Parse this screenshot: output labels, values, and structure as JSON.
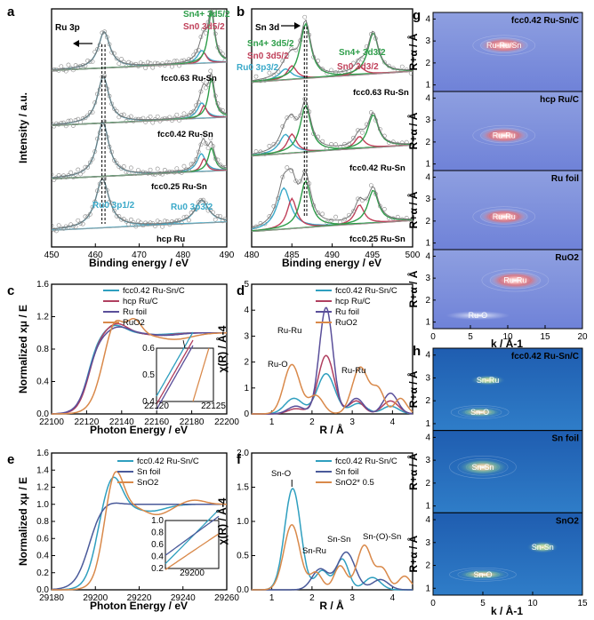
{
  "colors": {
    "fcc": "#2f9fbf",
    "hcp": "#b04060",
    "rufoil": "#5a4f9a",
    "ruo2": "#d9894a",
    "snfoil": "#4a5a9a",
    "sno2": "#d9894a",
    "green": "#2e9e4a",
    "red": "#c0405a",
    "blue": "#3aa9c9",
    "raw": "#888888"
  },
  "panels": {
    "a": "a",
    "b": "b",
    "c": "c",
    "d": "d",
    "e": "e",
    "f": "f",
    "g": "g",
    "h": "h"
  },
  "chart_data": [
    {
      "id": "a",
      "type": "line",
      "title": "Ru 3p",
      "xlabel": "Binding energy / eV",
      "ylabel": "Intensity / a.u.",
      "xlim": [
        450,
        490
      ],
      "xticks": [
        450,
        460,
        470,
        480,
        490
      ],
      "samples": [
        "fcc0.63 Ru-Sn",
        "fcc0.42 Ru-Sn",
        "fcc0.25 Ru-Sn",
        "hcp Ru"
      ],
      "peaks": {
        "Ru0 3p1/2": 462.0,
        "Ru0 3p3/2": 484.3,
        "Sn0 3d5/2": 484.8,
        "Sn4+ 3d5/2": 486.5
      },
      "labels": {
        "sn4": "Sn4+ 3d5/2",
        "sn0": "Sn0 3d5/2",
        "ru1": "Ru0 3p1/2",
        "ru3": "Ru0 3p3/2"
      }
    },
    {
      "id": "b",
      "type": "line",
      "title": "Sn 3d",
      "xlabel": "Binding energy / eV",
      "ylabel": "",
      "xlim": [
        480,
        500
      ],
      "xticks": [
        480,
        485,
        490,
        495,
        500
      ],
      "samples": [
        "fcc0.63 Ru-Sn",
        "fcc0.42 Ru-Sn",
        "fcc0.25 Ru-Sn"
      ],
      "peaks": {
        "Ru0 3p3/2": 484.2,
        "Sn0 3d5/2": 485.0,
        "Sn4+ 3d5/2": 486.7,
        "Sn0 3d3/2": 493.4,
        "Sn4+ 3d3/2": 495.1
      },
      "labels": {
        "sn4_52": "Sn4+ 3d5/2",
        "sn0_52": "Sn0 3d5/2",
        "ru": "Ru0 3p3/2",
        "sn4_32": "Sn4+ 3d3/2",
        "sn0_32": "Sn0 3d3/2"
      }
    },
    {
      "id": "c",
      "type": "line",
      "xlabel": "Photon Energy / eV",
      "ylabel": "Normalized xμ / E",
      "xlim": [
        22100,
        22200
      ],
      "ylim": [
        0,
        1.6
      ],
      "xticks": [
        22100,
        22120,
        22140,
        22160,
        22180,
        22200
      ],
      "yticks": [
        0,
        0.4,
        0.8,
        1.2,
        1.6
      ],
      "series": [
        {
          "name": "fcc0.42 Ru-Sn/C",
          "color": "#2f9fbf"
        },
        {
          "name": "hcp Ru/C",
          "color": "#b04060"
        },
        {
          "name": "Ru foil",
          "color": "#5a4f9a"
        },
        {
          "name": "RuO2",
          "color": "#d9894a"
        }
      ],
      "inset": {
        "xlim": [
          22120,
          22125
        ],
        "ylim": [
          0.4,
          0.6
        ],
        "xticks": [
          22120,
          22125
        ],
        "yticks": [
          0.4,
          0.5,
          0.6
        ]
      }
    },
    {
      "id": "d",
      "type": "line",
      "xlabel": "R / Å",
      "ylabel": "χ(R) / Å-4",
      "xlim": [
        0.5,
        4.5
      ],
      "ylim": [
        0,
        5
      ],
      "xticks": [
        1,
        2,
        3,
        4
      ],
      "yticks": [
        0,
        1,
        2,
        3,
        4,
        5
      ],
      "series": [
        {
          "name": "fcc0.42 Ru-Sn/C",
          "color": "#2f9fbf",
          "peak": 1.55
        },
        {
          "name": "hcp Ru/C",
          "color": "#b04060",
          "peak": 2.25
        },
        {
          "name": "Ru foil",
          "color": "#5a4f9a",
          "peak": 4.1
        },
        {
          "name": "RuO2",
          "color": "#d9894a",
          "peak": 1.9
        }
      ],
      "annotations": [
        "Ru-Ru",
        "Ru-O",
        "Ru-Ru"
      ]
    },
    {
      "id": "e",
      "type": "line",
      "xlabel": "Photon Energy / eV",
      "ylabel": "Normalized xμ / E",
      "xlim": [
        29180,
        29260
      ],
      "ylim": [
        0,
        1.6
      ],
      "xticks": [
        29180,
        29200,
        29220,
        29240,
        29260
      ],
      "yticks": [
        0,
        0.2,
        0.4,
        0.6,
        0.8,
        1.0,
        1.2,
        1.4,
        1.6
      ],
      "series": [
        {
          "name": "fcc0.42 Ru-Sn/C",
          "color": "#2f9fbf"
        },
        {
          "name": "Sn foil",
          "color": "#4a5a9a"
        },
        {
          "name": "SnO2",
          "color": "#d9894a"
        }
      ],
      "inset": {
        "xlim": [
          29195,
          29205
        ],
        "ylim": [
          0.2,
          1.0
        ],
        "xticks": [
          29200
        ],
        "yticks": [
          0.2,
          0.4,
          0.6,
          0.8,
          1.0
        ]
      }
    },
    {
      "id": "f",
      "type": "line",
      "xlabel": "R / Å",
      "ylabel": "χ(R) / Å-4",
      "xlim": [
        0.5,
        4.5
      ],
      "ylim": [
        0,
        2.0
      ],
      "xticks": [
        1,
        2,
        3,
        4
      ],
      "yticks": [
        0,
        0.5,
        1.0,
        1.5,
        2.0
      ],
      "series": [
        {
          "name": "fcc0.42 Ru-Sn/C",
          "color": "#2f9fbf",
          "peak": 1.48
        },
        {
          "name": "Sn foil",
          "color": "#4a5a9a",
          "peak": 0.55
        },
        {
          "name": "SnO2* 0.5",
          "color": "#d9894a",
          "peak": 0.95
        }
      ],
      "annotations": [
        "Sn-O",
        "Sn-Ru",
        "Sn-Sn",
        "Sn-(O)-Sn"
      ]
    },
    {
      "id": "g",
      "type": "heatmap",
      "xlabel": "k / Å-1",
      "ylabel": "R+α / Å",
      "xlim": [
        0,
        20
      ],
      "ylim": [
        1,
        4
      ],
      "xticks": [
        0,
        5,
        10,
        15,
        20
      ],
      "yticks": [
        1,
        2,
        3,
        4
      ],
      "panels": [
        {
          "name": "fcc0.42 Ru-Sn/C",
          "feature": "Ru-Ru/Sn"
        },
        {
          "name": "hcp Ru/C",
          "feature": "Ru-Ru"
        },
        {
          "name": "Ru foil",
          "feature": "Ru-Ru"
        },
        {
          "name": "RuO2",
          "feature": "Ru-Ru",
          "feature2": "Ru-O"
        }
      ]
    },
    {
      "id": "h",
      "type": "heatmap",
      "xlabel": "k / Å-1",
      "ylabel": "R+α / Å",
      "xlim": [
        0,
        15
      ],
      "ylim": [
        1,
        4
      ],
      "xticks": [
        0,
        5,
        10,
        15
      ],
      "yticks": [
        1,
        2,
        3,
        4
      ],
      "panels": [
        {
          "name": "fcc0.42 Ru-Sn/C",
          "feature": "Sn-O",
          "feature2": "Sn-Ru"
        },
        {
          "name": "Sn foil",
          "feature": "Sn-Sn"
        },
        {
          "name": "SnO2",
          "feature": "Sn-O",
          "feature2": "Sn-Sn"
        }
      ]
    }
  ]
}
